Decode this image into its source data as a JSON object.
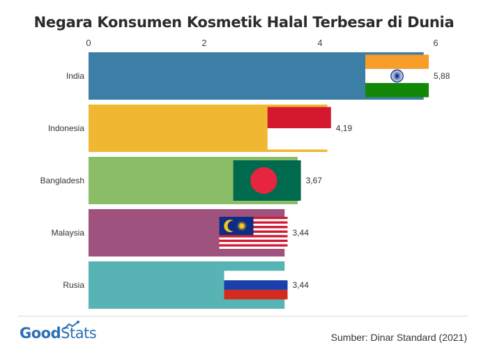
{
  "title": "Negara Konsumen Kosmetik Halal Terbesar di Dunia",
  "chart_data": {
    "type": "bar",
    "orientation": "horizontal",
    "title": "Negara Konsumen Kosmetik Halal Terbesar di Dunia",
    "categories": [
      "India",
      "Indonesia",
      "Bangladesh",
      "Malaysia",
      "Rusia"
    ],
    "values": [
      5.88,
      4.19,
      3.67,
      3.44,
      3.44
    ],
    "value_labels": [
      "5,88",
      "4,19",
      "3,67",
      "3,44",
      "3,44"
    ],
    "xticks": [
      "0",
      "2",
      "4",
      "6"
    ],
    "xlim": [
      0,
      6
    ],
    "axis_position": "top",
    "colors": [
      "#3d7ea6",
      "#f0b732",
      "#8bbd66",
      "#a0527f",
      "#58b4b4"
    ],
    "flag_icons": [
      "india-flag-icon",
      "indonesia-flag-icon",
      "bangladesh-flag-icon",
      "malaysia-flag-icon",
      "russia-flag-icon"
    ]
  },
  "footer": {
    "logo_part1": "Good",
    "logo_part2": "Stats",
    "source": "Sumber: Dinar Standard (2021)"
  },
  "colors": {
    "logo": "#2b6fb3",
    "divider": "#d9d9d9"
  }
}
